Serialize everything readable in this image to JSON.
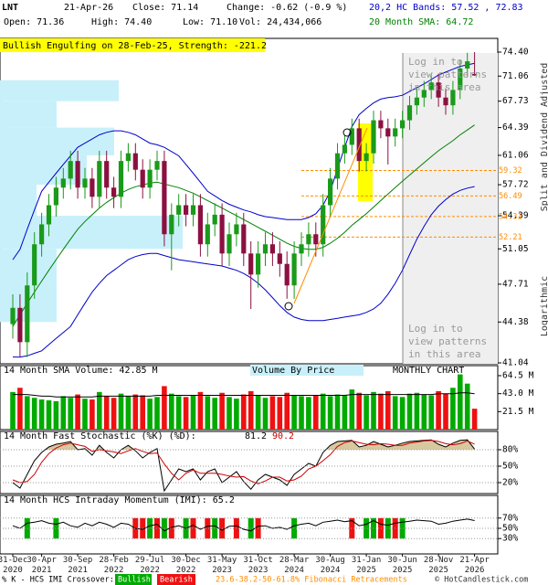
{
  "header": {
    "symbol": "LNT",
    "date": "21-Apr-26",
    "close": "Close: 71.14",
    "change": "Change: -0.62 (-0.9 %)",
    "open": "Open: 71.36",
    "high": "High: 74.40",
    "low": "Low: 71.10",
    "volume": "Vol: 24,434,066"
  },
  "footer": {
    "crossover_label": "% K - HCS IMI Crossover:",
    "copyright": "© HotCandlestick.com"
  },
  "chart_data": [
    {
      "type": "candlestick",
      "annotation": "Bullish Engulfing on 28-Feb-25, Strength: -221.2",
      "patterns_notice": [
        "Log in to",
        "view patterns",
        "in this area"
      ],
      "axis_notes": [
        "Split and Dividend Adjusted",
        "Logarithmic"
      ],
      "categories": [
        "31-Dec 2020",
        null,
        null,
        null,
        "30-Apr 2021",
        null,
        null,
        null,
        null,
        "30-Sep 2021",
        null,
        null,
        null,
        null,
        "28-Feb 2022",
        null,
        null,
        null,
        null,
        "29-Jul 2022",
        null,
        null,
        null,
        null,
        "30-Dec 2022",
        null,
        null,
        null,
        null,
        "31-May 2023",
        null,
        null,
        null,
        null,
        "31-Oct 2023",
        null,
        null,
        null,
        null,
        "28-Mar 2024",
        null,
        null,
        null,
        null,
        "30-Aug 2024",
        null,
        null,
        null,
        null,
        "31-Jan 2025",
        null,
        null,
        null,
        null,
        "30-Jun 2025",
        null,
        null,
        null,
        null,
        "28-Nov 2025",
        null,
        null,
        null,
        null,
        "21-Apr 2026"
      ],
      "open": [
        44.2,
        45.6,
        42.7,
        47.6,
        51.5,
        53.5,
        55.5,
        57.4,
        58.4,
        60.4,
        57.4,
        58.4,
        56.4,
        60.4,
        57.4,
        56.4,
        60.4,
        61.3,
        59.4,
        57.4,
        59.4,
        60.4,
        52.5,
        54.5,
        55.5,
        54.5,
        55.5,
        51.5,
        53.5,
        54.5,
        50.6,
        52.5,
        53.5,
        50.6,
        48.6,
        50.6,
        51.5,
        50.6,
        49.6,
        47.6,
        50.6,
        51.5,
        52.5,
        51.5,
        55.5,
        58.4,
        61.3,
        62.3,
        64.3,
        60.4,
        61.3,
        65.3,
        64.3,
        63.3,
        64.3,
        65.3,
        67.2,
        68.2,
        69.2,
        70.2,
        68.2,
        67.2,
        69.2,
        72.1,
        71.36
      ],
      "high": [
        46.8,
        46.8,
        48.8,
        52.7,
        54.7,
        56.7,
        58.6,
        59.6,
        61.6,
        61.6,
        59.6,
        59.6,
        61.6,
        61.6,
        58.6,
        61.6,
        62.5,
        62.5,
        60.6,
        60.6,
        61.6,
        61.6,
        55.7,
        56.7,
        56.7,
        56.7,
        56.7,
        54.7,
        55.7,
        55.7,
        53.7,
        54.7,
        54.7,
        51.8,
        51.8,
        52.7,
        52.7,
        51.8,
        50.8,
        51.8,
        52.7,
        53.7,
        53.7,
        56.7,
        59.6,
        62.5,
        63.5,
        65.5,
        65.5,
        62.5,
        66.5,
        66.5,
        65.5,
        65.5,
        66.5,
        68.4,
        69.4,
        70.4,
        71.4,
        71.4,
        69.4,
        70.4,
        73.3,
        74.3,
        74.4
      ],
      "low": [
        43.0,
        41.5,
        41.5,
        46.4,
        50.3,
        52.3,
        54.3,
        56.2,
        57.2,
        56.2,
        56.2,
        55.2,
        55.2,
        56.2,
        55.2,
        55.2,
        59.2,
        58.2,
        56.2,
        56.2,
        58.2,
        51.3,
        49.0,
        53.3,
        53.3,
        53.3,
        50.3,
        50.3,
        52.3,
        49.4,
        49.4,
        51.3,
        49.4,
        45.5,
        47.4,
        49.4,
        49.4,
        48.4,
        46.4,
        46.4,
        49.4,
        50.3,
        50.3,
        50.3,
        54.3,
        57.2,
        60.1,
        61.1,
        59.2,
        59.2,
        60.1,
        63.1,
        60.0,
        62.1,
        63.1,
        64.1,
        66.0,
        67.0,
        68.0,
        67.0,
        66.0,
        66.0,
        68.0,
        71.0,
        71.1
      ],
      "close": [
        45.6,
        42.7,
        47.6,
        51.5,
        53.5,
        55.5,
        57.4,
        58.4,
        60.4,
        57.4,
        58.4,
        56.4,
        60.4,
        57.4,
        56.4,
        60.4,
        61.3,
        59.4,
        57.4,
        59.4,
        60.4,
        52.5,
        54.5,
        55.5,
        54.5,
        55.5,
        51.5,
        53.5,
        54.5,
        50.6,
        52.5,
        53.5,
        50.6,
        48.6,
        50.6,
        51.5,
        50.6,
        49.6,
        47.6,
        50.6,
        51.5,
        52.5,
        51.5,
        55.5,
        58.4,
        61.3,
        62.3,
        64.3,
        60.4,
        61.3,
        65.3,
        64.3,
        63.3,
        64.3,
        65.3,
        67.2,
        68.2,
        69.2,
        70.2,
        68.2,
        67.2,
        69.2,
        72.1,
        73.1,
        71.14
      ],
      "up_color": "#1a9a1a",
      "down_color": "#8b1040",
      "log_scale": true,
      "ylim": [
        41.04,
        74.4
      ],
      "yticks": [
        {
          "value": 74.4,
          "label": "74.40"
        },
        71.06,
        67.73,
        64.39,
        61.06,
        57.72,
        54.39,
        51.05,
        47.71,
        44.38,
        41.04
      ],
      "bands": {
        "name": "20,2 HC Bands: 57.52 , 72.83",
        "color": "#0000cc",
        "upper": [
          50,
          51,
          53,
          55,
          57,
          58,
          59,
          60,
          61,
          62,
          62.5,
          63,
          63.5,
          63.8,
          64,
          64,
          63.8,
          63.5,
          63,
          62.5,
          62.3,
          62,
          61.5,
          61,
          60,
          59,
          58,
          57,
          56.5,
          56,
          55.6,
          55.3,
          55,
          54.8,
          54.5,
          54.3,
          54.2,
          54.1,
          54,
          54,
          54,
          54.2,
          54.6,
          55.5,
          57,
          59.5,
          62,
          64.5,
          66,
          66.8,
          67.5,
          68,
          68.2,
          68.3,
          68.5,
          69,
          69.5,
          70,
          70.6,
          71.2,
          71.6,
          72,
          72.4,
          72.6,
          72.83
        ],
        "lower": [
          41.5,
          41.5,
          41.6,
          41.8,
          42,
          42.5,
          43,
          43.5,
          44,
          45,
          46,
          47,
          47.8,
          48.5,
          49,
          49.5,
          50,
          50.3,
          50.5,
          50.6,
          50.6,
          50.4,
          50.2,
          50,
          49.9,
          49.8,
          49.7,
          49.6,
          49.5,
          49.4,
          49.2,
          49,
          48.7,
          48.3,
          47.8,
          47.2,
          46.5,
          45.8,
          45.2,
          44.8,
          44.6,
          44.5,
          44.5,
          44.5,
          44.6,
          44.7,
          44.8,
          44.9,
          45,
          45.2,
          45.5,
          46,
          46.8,
          47.8,
          49,
          50.5,
          52,
          53.3,
          54.5,
          55.4,
          56.1,
          56.7,
          57.1,
          57.35,
          57.52
        ]
      },
      "series": [
        {
          "name": "20 Month SMA: 64.72",
          "color": "#008000",
          "values": [
            44,
            45,
            46,
            47,
            48,
            49,
            50,
            51,
            52,
            53,
            53.8,
            54.5,
            55.2,
            55.8,
            56.3,
            56.8,
            57.2,
            57.5,
            57.7,
            57.9,
            58.0,
            57.8,
            57.6,
            57.4,
            57.1,
            56.8,
            56.4,
            56.0,
            55.6,
            55.2,
            54.8,
            54.4,
            54.0,
            53.6,
            53.2,
            52.8,
            52.4,
            52.0,
            51.6,
            51.3,
            51.1,
            51.0,
            51.0,
            51.2,
            51.6,
            52.1,
            52.7,
            53.4,
            54.0,
            54.6,
            55.3,
            56.0,
            56.7,
            57.4,
            58.1,
            58.8,
            59.5,
            60.2,
            60.9,
            61.6,
            62.2,
            62.8,
            63.5,
            64.1,
            64.72
          ]
        }
      ],
      "fib_levels": {
        "label": "23.6-38.2-50-61.8% Fibonacci Retracements",
        "color": "#ff8c00",
        "values": [
          59.32,
          56.49,
          54.31,
          52.21
        ]
      },
      "volume_by_price": {
        "label": "Volume By Price",
        "color": "#c8f0fa",
        "bins": [
          44.38,
          47.71,
          51.05,
          54.39,
          57.72,
          61.06,
          64.39,
          67.73,
          70.5
        ],
        "values": [
          62,
          62,
          200,
          40,
          95,
          125,
          62,
          130
        ]
      }
    },
    {
      "type": "bar",
      "label": "MONTHLY CHART",
      "up_color": "#00aa00",
      "down_color": "#ee1111",
      "values": [
        45,
        50,
        40,
        38,
        36,
        35,
        34,
        40,
        38,
        42,
        37,
        36,
        45,
        40,
        38,
        43,
        40,
        42,
        41,
        37,
        39,
        52,
        43,
        40,
        39,
        41,
        45,
        40,
        38,
        44,
        39,
        37,
        42,
        46,
        41,
        38,
        40,
        39,
        44,
        41,
        40,
        39,
        41,
        43,
        40,
        42,
        41,
        48,
        44,
        41,
        45,
        43,
        46,
        40,
        39,
        43,
        44,
        42,
        41,
        46,
        43,
        50,
        66,
        55,
        25
      ],
      "ylim": [
        0,
        76.5
      ],
      "yticks": [
        {
          "value": 64.5,
          "label": "64.5 M"
        },
        {
          "value": 43,
          "label": "43.0 M"
        },
        {
          "value": 21.5,
          "label": "21.5 M"
        }
      ],
      "series": [
        {
          "name": "14 Month SMA Volume: 42.85 M",
          "color": "#000000",
          "values": [
            42,
            42,
            42,
            41,
            40,
            40,
            39,
            39,
            39,
            39,
            39,
            39,
            40,
            40,
            40,
            40,
            40,
            40,
            40,
            40,
            41,
            41,
            41,
            41,
            41,
            41,
            41,
            41,
            41,
            41,
            41,
            41,
            41,
            41,
            41,
            41,
            41,
            41,
            41,
            41,
            41,
            41,
            41,
            41,
            41,
            41,
            41,
            42,
            42,
            42,
            42,
            42,
            42,
            42,
            42,
            42,
            42,
            42,
            42,
            43,
            43,
            43,
            44,
            44,
            42.85
          ]
        }
      ]
    },
    {
      "type": "line",
      "title": "14 Month Fast Stochastic (%K) (%D):",
      "shade_color": "#d8c8a0",
      "ylim": [
        0,
        110
      ],
      "yticks": [
        {
          "value": 80,
          "label": "80%"
        },
        {
          "value": 50,
          "label": "50%"
        },
        {
          "value": 20,
          "label": "20%"
        }
      ],
      "series": [
        {
          "color": "#000000",
          "values": [
            20,
            10,
            35,
            60,
            75,
            85,
            90,
            92,
            95,
            80,
            82,
            70,
            88,
            75,
            65,
            80,
            88,
            78,
            65,
            75,
            82,
            5,
            25,
            45,
            40,
            45,
            25,
            40,
            45,
            20,
            30,
            40,
            22,
            8,
            25,
            35,
            30,
            25,
            15,
            35,
            45,
            55,
            50,
            75,
            88,
            95,
            96,
            97,
            85,
            88,
            95,
            90,
            85,
            88,
            92,
            95,
            96,
            97,
            98,
            90,
            85,
            92,
            97,
            98,
            81.2
          ]
        },
        {
          "color": "#cc0000",
          "values": [
            25,
            20,
            22,
            35,
            57,
            73,
            83,
            89,
            92,
            89,
            86,
            77,
            80,
            78,
            76,
            73,
            78,
            82,
            77,
            73,
            74,
            54,
            37,
            25,
            37,
            43,
            37,
            37,
            37,
            35,
            32,
            30,
            31,
            23,
            18,
            23,
            30,
            30,
            23,
            25,
            32,
            45,
            50,
            60,
            71,
            86,
            93,
            96,
            93,
            90,
            89,
            91,
            90,
            88,
            88,
            92,
            94,
            96,
            97,
            95,
            91,
            89,
            91,
            96,
            90.2
          ]
        }
      ]
    },
    {
      "type": "line",
      "title": "14 Month HCS Intraday Momentum (IMI): 65.2",
      "ylim": [
        0,
        100
      ],
      "yticks": [
        {
          "value": 70,
          "label": "70%"
        },
        {
          "value": 50,
          "label": "50%"
        },
        {
          "value": 30,
          "label": "30%"
        }
      ],
      "series": [
        {
          "color": "#000000",
          "values": [
            55,
            50,
            60,
            62,
            65,
            60,
            58,
            62,
            55,
            52,
            60,
            55,
            62,
            58,
            52,
            60,
            58,
            50,
            48,
            55,
            58,
            45,
            52,
            55,
            50,
            56,
            48,
            54,
            55,
            46,
            54,
            55,
            48,
            45,
            54,
            55,
            50,
            52,
            48,
            55,
            58,
            60,
            55,
            62,
            64,
            66,
            63,
            65,
            55,
            58,
            65,
            58,
            56,
            60,
            62,
            64,
            66,
            65,
            64,
            58,
            60,
            64,
            66,
            68,
            65.2
          ]
        },
        {
          "name": "Bullish",
          "color": "#00aa00",
          "values": [
            null,
            null,
            70,
            null,
            null,
            null,
            70,
            null,
            null,
            null,
            null,
            null,
            null,
            null,
            null,
            null,
            null,
            null,
            null,
            70,
            null,
            70,
            null,
            null,
            70,
            null,
            null,
            null,
            70,
            null,
            null,
            null,
            null,
            70,
            null,
            null,
            null,
            null,
            null,
            70,
            null,
            null,
            null,
            null,
            null,
            null,
            null,
            null,
            null,
            70,
            70,
            null,
            70,
            null,
            70,
            null,
            null,
            null,
            null,
            null,
            null,
            null,
            null,
            null,
            null
          ]
        },
        {
          "name": "Bearish",
          "color": "#ee1111",
          "values": [
            null,
            null,
            null,
            null,
            null,
            null,
            null,
            null,
            null,
            null,
            null,
            null,
            null,
            null,
            null,
            null,
            null,
            70,
            70,
            null,
            70,
            null,
            70,
            null,
            null,
            70,
            null,
            70,
            null,
            70,
            null,
            70,
            null,
            null,
            70,
            null,
            null,
            null,
            null,
            null,
            null,
            null,
            null,
            null,
            null,
            null,
            null,
            70,
            null,
            null,
            null,
            70,
            null,
            70,
            null,
            null,
            null,
            null,
            null,
            null,
            null,
            null,
            null,
            null,
            null
          ]
        }
      ]
    }
  ]
}
